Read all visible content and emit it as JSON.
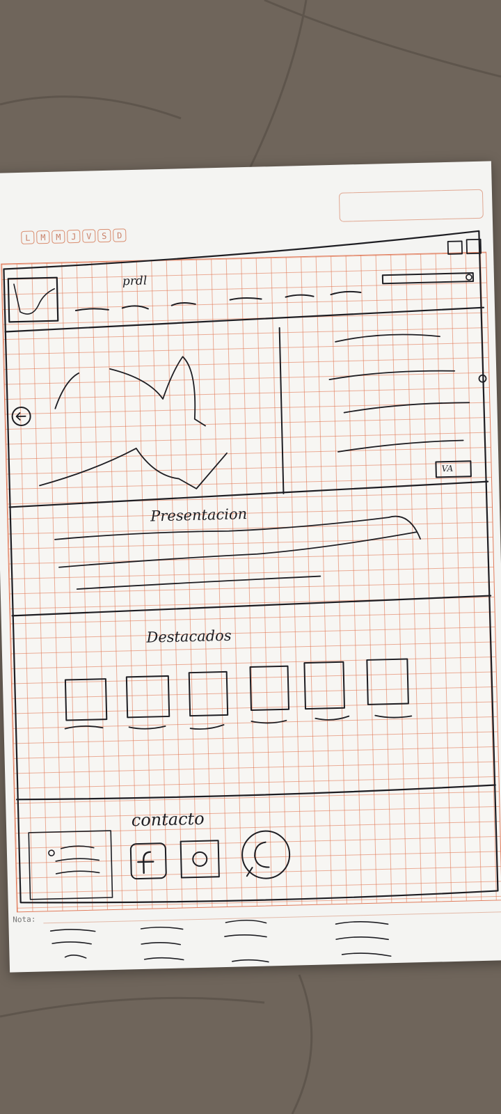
{
  "planner": {
    "days": [
      "L",
      "M",
      "M",
      "J",
      "V",
      "S",
      "D"
    ],
    "note_label": "Nota:"
  },
  "sketch": {
    "header_text": "prdl",
    "presentation_heading": "Presentacion",
    "featured_heading": "Destacados",
    "contact_heading": "contacto",
    "hero_button_text": "VA"
  }
}
